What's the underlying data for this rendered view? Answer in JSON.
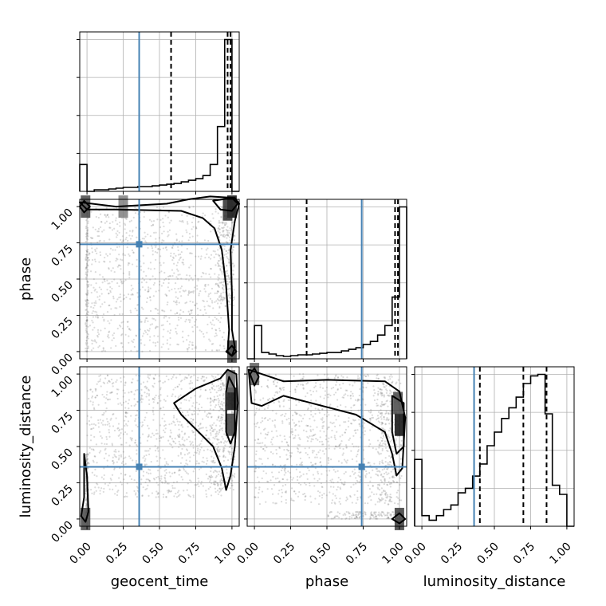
{
  "chart_data": {
    "type": "corner",
    "parameters": [
      "geocent_time",
      "phase",
      "luminosity_distance"
    ],
    "axis_labels": [
      "geocent_time",
      "phase",
      "luminosity_distance"
    ],
    "range": [
      -0.05,
      1.05
    ],
    "ticks": [
      0.0,
      0.25,
      0.5,
      0.75,
      1.0
    ],
    "tick_labels": [
      "0.00",
      "0.25",
      "0.50",
      "0.75",
      "1.00"
    ],
    "truths": [
      0.36,
      0.74,
      0.36
    ],
    "truth_color": "#4682b4",
    "quantiles": [
      [
        0.58,
        0.97,
        0.99
      ],
      [
        0.36,
        0.97,
        0.99
      ],
      [
        0.4,
        0.7,
        0.86
      ]
    ],
    "histograms": [
      {
        "parameter": "geocent_time",
        "bin_edges": [
          -0.05,
          0.0,
          0.05,
          0.1,
          0.15,
          0.2,
          0.25,
          0.3,
          0.35,
          0.4,
          0.45,
          0.5,
          0.55,
          0.6,
          0.65,
          0.7,
          0.75,
          0.8,
          0.85,
          0.9,
          0.95,
          1.0,
          1.05
        ],
        "heights": [
          0.17,
          0.0,
          0.01,
          0.01,
          0.015,
          0.02,
          0.025,
          0.025,
          0.03,
          0.03,
          0.035,
          0.04,
          0.045,
          0.05,
          0.06,
          0.07,
          0.08,
          0.1,
          0.17,
          0.41,
          0.96,
          0.0
        ]
      },
      {
        "parameter": "phase",
        "bin_edges": [
          -0.05,
          0.0,
          0.05,
          0.1,
          0.15,
          0.2,
          0.25,
          0.3,
          0.35,
          0.4,
          0.45,
          0.5,
          0.55,
          0.6,
          0.65,
          0.7,
          0.75,
          0.8,
          0.85,
          0.9,
          0.95,
          1.0,
          1.05
        ],
        "heights": [
          0.0,
          0.21,
          0.04,
          0.03,
          0.02,
          0.015,
          0.02,
          0.025,
          0.025,
          0.03,
          0.035,
          0.04,
          0.04,
          0.05,
          0.06,
          0.07,
          0.09,
          0.11,
          0.15,
          0.21,
          0.39,
          0.96
        ]
      },
      {
        "parameter": "luminosity_distance",
        "bin_edges": [
          -0.05,
          0.0,
          0.05,
          0.1,
          0.15,
          0.2,
          0.25,
          0.3,
          0.35,
          0.4,
          0.45,
          0.5,
          0.55,
          0.6,
          0.65,
          0.7,
          0.75,
          0.8,
          0.85,
          0.9,
          0.95,
          1.0,
          1.05
        ],
        "heights": [
          0.44,
          0.07,
          0.04,
          0.07,
          0.11,
          0.14,
          0.22,
          0.25,
          0.33,
          0.41,
          0.53,
          0.62,
          0.71,
          0.78,
          0.85,
          0.94,
          0.99,
          1.0,
          0.74,
          0.27,
          0.21,
          0.0
        ]
      }
    ],
    "pairs": [
      {
        "x": "geocent_time",
        "y": "phase",
        "scatter_regions": [
          {
            "x": [
              0.0,
              0.95
            ],
            "y": [
              0.0,
              1.0
            ],
            "count": 900
          },
          {
            "x": [
              0.9,
              1.02
            ],
            "y": [
              0.3,
              1.0
            ],
            "count": 250
          },
          {
            "x": [
              -0.01,
              0.01
            ],
            "y": [
              0.0,
              1.0
            ],
            "count": 120
          }
        ],
        "density_peaks": [
          {
            "x": 1.0,
            "y": 1.0,
            "level": 0.95
          },
          {
            "x": 0.97,
            "y": 0.98,
            "level": 0.8
          },
          {
            "x": -0.01,
            "y": 1.0,
            "level": 0.7
          },
          {
            "x": 1.0,
            "y": 0.0,
            "level": 0.75
          },
          {
            "x": 0.25,
            "y": 1.0,
            "level": 0.45
          }
        ],
        "contours": [
          [
            [
              -0.05,
              1.03
            ],
            [
              0.2,
              1.0
            ],
            [
              0.55,
              1.02
            ],
            [
              0.7,
              1.05
            ],
            [
              0.85,
              1.07
            ],
            [
              1.02,
              1.06
            ],
            [
              1.05,
              1.02
            ],
            [
              1.02,
              0.9
            ],
            [
              0.99,
              0.7
            ],
            [
              1.0,
              0.4
            ],
            [
              1.0,
              0.15
            ],
            [
              1.02,
              0.03
            ],
            [
              1.0,
              -0.03
            ],
            [
              0.97,
              0.0
            ],
            [
              0.98,
              0.15
            ],
            [
              0.96,
              0.45
            ],
            [
              0.93,
              0.7
            ],
            [
              0.88,
              0.85
            ],
            [
              0.8,
              0.92
            ],
            [
              0.65,
              0.97
            ],
            [
              0.2,
              0.98
            ],
            [
              0.0,
              0.98
            ]
          ],
          [
            [
              0.87,
              1.04
            ],
            [
              1.0,
              1.06
            ],
            [
              1.04,
              1.02
            ],
            [
              1.0,
              0.97
            ],
            [
              0.92,
              0.98
            ]
          ],
          [
            [
              -0.05,
              1.0
            ],
            [
              -0.02,
              1.04
            ],
            [
              0.02,
              1.0
            ],
            [
              -0.02,
              0.96
            ]
          ],
          [
            [
              0.96,
              0.0
            ],
            [
              1.0,
              0.04
            ],
            [
              1.03,
              0.0
            ],
            [
              1.0,
              -0.03
            ]
          ]
        ]
      },
      {
        "x": "geocent_time",
        "y": "luminosity_distance",
        "scatter_regions": [
          {
            "x": [
              0.0,
              0.95
            ],
            "y": [
              0.15,
              1.0
            ],
            "count": 900
          },
          {
            "x": [
              0.85,
              1.02
            ],
            "y": [
              0.2,
              1.0
            ],
            "count": 250
          },
          {
            "x": [
              -0.01,
              0.01
            ],
            "y": [
              0.0,
              0.45
            ],
            "count": 120
          }
        ],
        "density_peaks": [
          {
            "x": 1.0,
            "y": 0.83,
            "level": 0.95
          },
          {
            "x": 0.99,
            "y": 0.65,
            "level": 0.75
          },
          {
            "x": 0.99,
            "y": 0.95,
            "level": 0.55
          },
          {
            "x": -0.01,
            "y": 0.0,
            "level": 0.7
          }
        ],
        "contours": [
          [
            [
              0.97,
              1.03
            ],
            [
              1.03,
              1.0
            ],
            [
              1.04,
              0.8
            ],
            [
              1.02,
              0.5
            ],
            [
              0.99,
              0.3
            ],
            [
              0.96,
              0.2
            ],
            [
              0.93,
              0.35
            ],
            [
              0.87,
              0.5
            ],
            [
              0.65,
              0.72
            ],
            [
              0.6,
              0.8
            ],
            [
              0.75,
              0.9
            ],
            [
              0.92,
              0.97
            ]
          ],
          [
            [
              0.98,
              0.98
            ],
            [
              1.02,
              0.9
            ],
            [
              1.02,
              0.6
            ],
            [
              0.99,
              0.52
            ],
            [
              0.96,
              0.6
            ],
            [
              0.96,
              0.88
            ]
          ],
          [
            [
              -0.02,
              0.45
            ],
            [
              0.0,
              0.3
            ],
            [
              0.01,
              0.05
            ],
            [
              -0.01,
              -0.02
            ],
            [
              -0.04,
              0.02
            ],
            [
              -0.02,
              0.15
            ]
          ]
        ]
      },
      {
        "x": "phase",
        "y": "luminosity_distance",
        "scatter_regions": [
          {
            "x": [
              0.0,
              0.95
            ],
            "y": [
              0.1,
              1.0
            ],
            "count": 900
          },
          {
            "x": [
              0.85,
              1.02
            ],
            "y": [
              0.1,
              1.0
            ],
            "count": 250
          },
          {
            "x": [
              0.5,
              1.0
            ],
            "y": [
              0.0,
              0.05
            ],
            "count": 120
          }
        ],
        "density_peaks": [
          {
            "x": 1.0,
            "y": 0.65,
            "level": 0.95
          },
          {
            "x": 0.99,
            "y": 0.8,
            "level": 0.7
          },
          {
            "x": 0.0,
            "y": 1.0,
            "level": 0.6
          },
          {
            "x": 1.0,
            "y": 0.0,
            "level": 0.75
          }
        ],
        "contours": [
          [
            [
              -0.04,
              1.03
            ],
            [
              0.2,
              0.95
            ],
            [
              0.5,
              0.96
            ],
            [
              0.9,
              0.95
            ],
            [
              1.0,
              0.88
            ],
            [
              1.04,
              0.7
            ],
            [
              1.02,
              0.35
            ],
            [
              0.98,
              0.3
            ],
            [
              0.95,
              0.45
            ],
            [
              0.9,
              0.6
            ],
            [
              0.7,
              0.72
            ],
            [
              0.2,
              0.85
            ],
            [
              0.05,
              0.78
            ],
            [
              -0.02,
              0.8
            ]
          ],
          [
            [
              0.95,
              0.85
            ],
            [
              1.03,
              0.8
            ],
            [
              1.03,
              0.5
            ],
            [
              0.98,
              0.45
            ],
            [
              0.95,
              0.6
            ]
          ],
          [
            [
              -0.03,
              1.0
            ],
            [
              0.0,
              1.04
            ],
            [
              0.03,
              0.98
            ],
            [
              0.0,
              0.92
            ]
          ],
          [
            [
              0.95,
              0.0
            ],
            [
              1.0,
              0.04
            ],
            [
              1.04,
              0.0
            ],
            [
              1.0,
              -0.03
            ]
          ]
        ]
      }
    ],
    "grid": true
  }
}
